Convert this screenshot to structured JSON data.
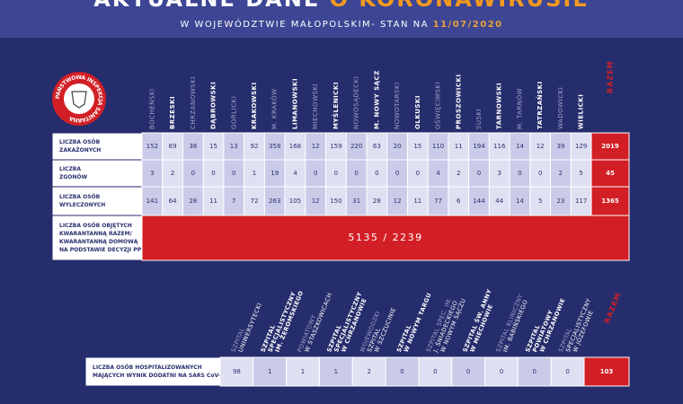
{
  "header": {
    "title": "AKTUALNE DANE",
    "title_highlight": "O KORONAWIRUSIE",
    "subtitle": "W WOJEWÓDZTWIE MAŁOPOLSKIM- STAN NA",
    "date": "11/07/2020"
  },
  "logo": {
    "text": "PAŃSTWOWA INSPEKCJA SANITARNA"
  },
  "counties_table": {
    "columns": [
      "BOCHEŃSKI",
      "BRZESKI",
      "CHRZANOWSKI",
      "DĄBROWSKI",
      "GORLICKI",
      "KRAKOWSKI",
      "M. KRAKÓW",
      "LIMANOWSKI",
      "MIECHOWSKI",
      "MYŚLENICKI",
      "NOWOSĄDECKI",
      "M. NOWY SĄCZ",
      "NOWOTARSKI",
      "OLKUSKI",
      "OŚWIĘCIMSKI",
      "PROSZOWICKI",
      "SUSKI",
      "TARNOWSKI",
      "M. TARNÓW",
      "TATRZAŃSKI",
      "WADOWICKI",
      "WIELICKI"
    ],
    "total_column": "RAZEM",
    "rows": [
      {
        "label": [
          "LICZBA OSÓB",
          "ZAKAŻONYCH"
        ],
        "values": [
          152,
          69,
          38,
          15,
          13,
          92,
          358,
          168,
          12,
          159,
          220,
          63,
          20,
          15,
          110,
          11,
          194,
          116,
          14,
          12,
          39,
          129
        ],
        "total": 2019
      },
      {
        "label": [
          "LICZBA",
          "ZGONÓW"
        ],
        "values": [
          3,
          2,
          0,
          0,
          0,
          1,
          19,
          4,
          0,
          0,
          0,
          0,
          0,
          0,
          4,
          2,
          0,
          3,
          0,
          0,
          2,
          5
        ],
        "total": 45
      },
      {
        "label": [
          "LICZBA OSÓB",
          "WYLECZONYCH"
        ],
        "values": [
          141,
          64,
          28,
          11,
          7,
          72,
          263,
          105,
          12,
          150,
          31,
          28,
          12,
          11,
          77,
          6,
          144,
          44,
          14,
          5,
          23,
          117
        ],
        "total": 1365
      }
    ],
    "quarantine": {
      "label": [
        "LICZBA OSÓB OBJĘTYCH",
        "KWARANTANNĄ RAZEM/",
        "KWARANTANNĄ DOMOWĄ",
        "NA PODSTAWIE DECYZJI PPIS"
      ],
      "value": "5135 / 2239"
    }
  },
  "hospitals_table": {
    "columns": [
      [
        "SZPITAL",
        "UNIWERSYTECKI"
      ],
      [
        "SZPITAL",
        "SPECJALISTYCZNY",
        "IM. ŻEROMSKIEGO"
      ],
      [
        "POWIATOWY",
        "W STASZKOWICACH"
      ],
      [
        "SZPITAL",
        "SPECJALISTYCZNY",
        "W CHRZANOWIE"
      ],
      [
        "WOJEWÓDZKI",
        "SZPITAL",
        "W SZCZUCINIE"
      ],
      [
        "SZPITAL",
        "W NOWYM TARGU"
      ],
      [
        "SZPITAL SPEC. IM.",
        "J. ŚNIADECKIEGO",
        "W NOWYM SĄCZU"
      ],
      [
        "SZPITAL ŚW. ANNY",
        "W MIECHOWIE"
      ],
      [
        "SZPITAL KLINICZNY",
        "IM. BABIŃSKIEGO"
      ],
      [
        "SZPITAL",
        "POWIATOWY",
        "W CHRZANOWIE"
      ],
      [
        "SZPITAL",
        "SPECJALISTYCZNY",
        "W JÓZEFOWIE"
      ]
    ],
    "total_column": "RAZEM",
    "row": {
      "label": [
        "LICZBA OSÓB HOSPITALIZOWANYCH",
        "MAJĄCYCH WYNIK DODATNI NA SARS CoV-2"
      ],
      "values": [
        98,
        1,
        1,
        1,
        2,
        0,
        0,
        0,
        0,
        0,
        0
      ],
      "total": 103
    }
  }
}
